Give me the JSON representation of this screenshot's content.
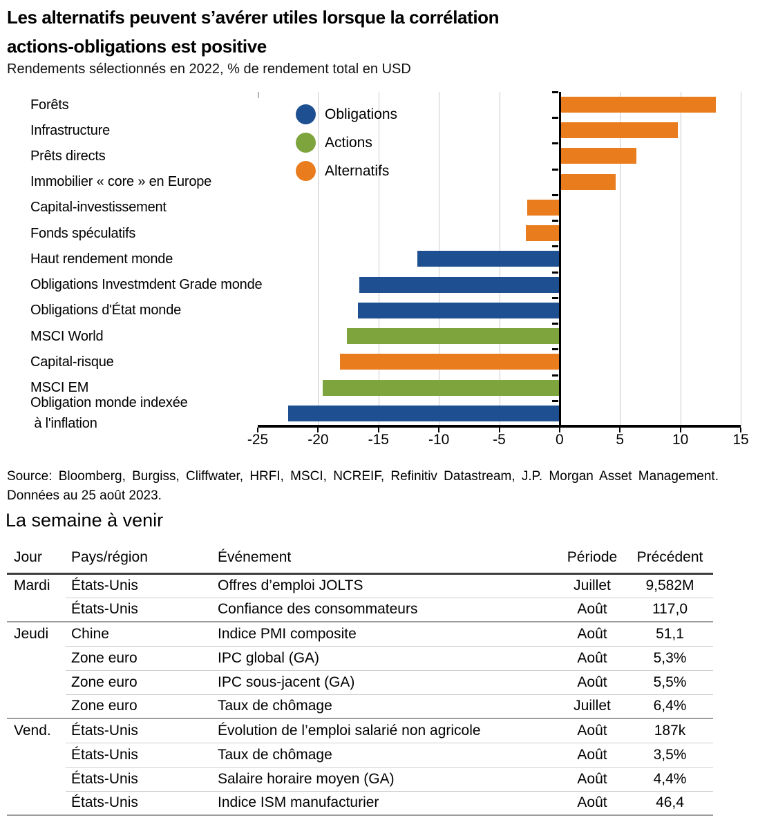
{
  "header": {
    "title": "Les alternatifs peuvent s’avérer utiles lorsque la corrélation\nactions-obligations est positive",
    "subtitle": "Rendements sélectionnés en 2022, % de rendement total en USD"
  },
  "chart_data": {
    "type": "bar",
    "orientation": "horizontal",
    "title": "Les alternatifs peuvent s’avérer utiles lorsque la corrélation actions-obligations est positive",
    "subtitle": "Rendements sélectionnés en 2022, % de rendement total en USD",
    "categories": [
      "Forêts",
      "Infrastructure",
      "Prêts directs",
      "Immobilier « core » en Europe",
      "Capital-investissement",
      "Fonds spéculatifs",
      "Haut rendement monde",
      "Obligations Investmdent Grade monde",
      "Obligations d'État monde",
      "MSCI World",
      "Capital-risque",
      "MSCI EM",
      "Obligation monde indexée\n à l'inflation"
    ],
    "values": [
      12.9,
      9.7,
      6.3,
      4.6,
      -2.7,
      -2.8,
      -11.8,
      -16.6,
      -16.7,
      -17.6,
      -18.2,
      -19.6,
      -22.5
    ],
    "series_of": [
      "Alternatifs",
      "Alternatifs",
      "Alternatifs",
      "Alternatifs",
      "Alternatifs",
      "Alternatifs",
      "Obligations",
      "Obligations",
      "Obligations",
      "Actions",
      "Alternatifs",
      "Actions",
      "Obligations"
    ],
    "colors": {
      "Obligations": "#1d4f91",
      "Actions": "#7ea43d",
      "Alternatifs": "#e97c1c"
    },
    "legend": [
      "Obligations",
      "Actions",
      "Alternatifs"
    ],
    "legend_position": "top-left-inside",
    "xlim": [
      -25,
      15
    ],
    "x_ticks": [
      -25,
      -20,
      -15,
      -10,
      -5,
      0,
      5,
      10,
      15
    ],
    "grid": "vertical",
    "xlabel": "",
    "ylabel": ""
  },
  "source": "Source: Bloomberg, Burgiss, Cliffwater, HRFI, MSCI, NCREIF, Refinitiv Datastream, J.P. Morgan Asset Management. Données au 25 août 2023.",
  "week_ahead": {
    "title": "La semaine à venir",
    "columns": [
      "Jour",
      "Pays/région",
      "Événement",
      "Période",
      "Précédent"
    ],
    "rows": [
      {
        "day": "Mardi",
        "region": "États-Unis",
        "event": "Offres d’emploi JOLTS",
        "period": "Juillet",
        "previous": "9,582M",
        "group_end": false
      },
      {
        "day": "",
        "region": "États-Unis",
        "event": "Confiance des consommateurs",
        "period": "Août",
        "previous": "117,0",
        "group_end": true
      },
      {
        "day": "Jeudi",
        "region": "Chine",
        "event": "Indice PMI composite",
        "period": "Août",
        "previous": "51,1",
        "group_end": false
      },
      {
        "day": "",
        "region": "Zone euro",
        "event": "IPC global (GA)",
        "period": "Août",
        "previous": "5,3%",
        "group_end": false
      },
      {
        "day": "",
        "region": "Zone euro",
        "event": "IPC sous-jacent (GA)",
        "period": "Août",
        "previous": "5,5%",
        "group_end": false
      },
      {
        "day": "",
        "region": "Zone euro",
        "event": "Taux de chômage",
        "period": "Juillet",
        "previous": "6,4%",
        "group_end": true
      },
      {
        "day": "Vend.",
        "region": "États-Unis",
        "event": "Évolution de l’emploi salarié non agricole",
        "period": "Août",
        "previous": "187k",
        "group_end": false
      },
      {
        "day": "",
        "region": "États-Unis",
        "event": "Taux de chômage",
        "period": "Août",
        "previous": "3,5%",
        "group_end": false
      },
      {
        "day": "",
        "region": "États-Unis",
        "event": "Salaire horaire moyen (GA)",
        "period": "Août",
        "previous": "4,4%",
        "group_end": false
      },
      {
        "day": "",
        "region": "États-Unis",
        "event": "Indice ISM manufacturier",
        "period": "Août",
        "previous": "46,4",
        "group_end": true
      }
    ]
  }
}
